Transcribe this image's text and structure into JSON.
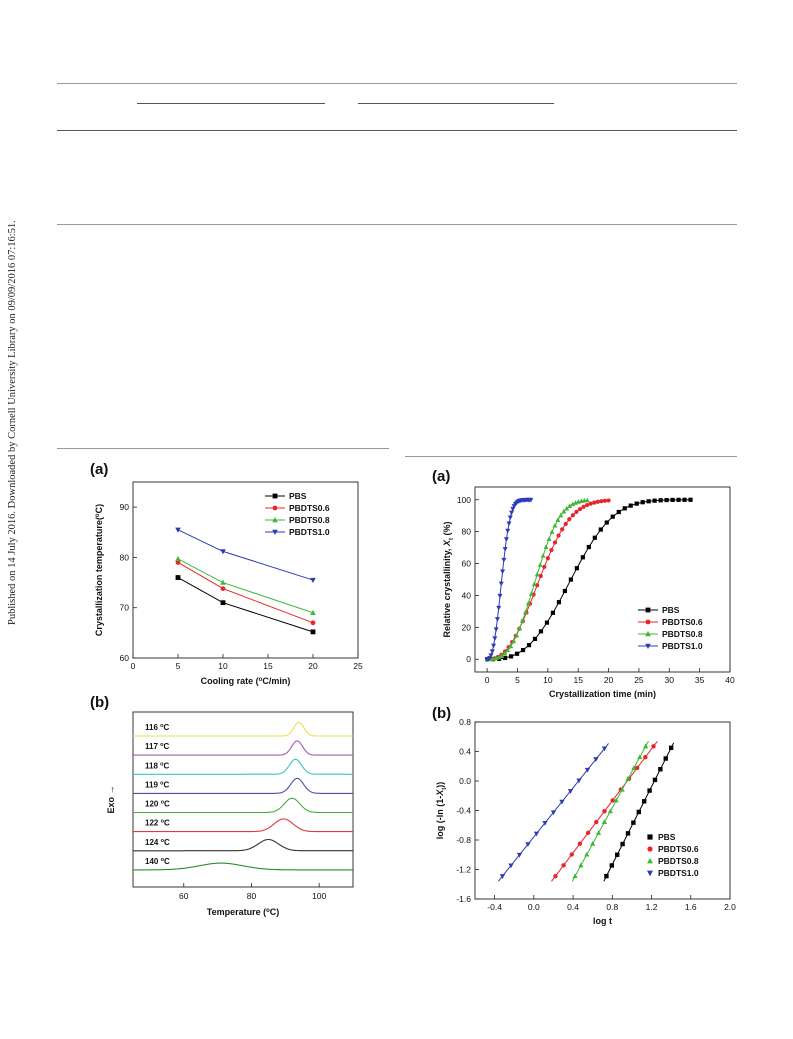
{
  "sidebar_text": "Published on 14 July 2016. Downloaded by Cornell University Library on 09/09/2016 07:16:51.",
  "colors": {
    "PBS": "#000000",
    "PBDTS0.6": "#e8252a",
    "PBDTS0.8": "#42b73a",
    "PBDTS1.0": "#2d3bb5"
  },
  "panel_labels": {
    "left_a": "(a)",
    "left_b": "(b)",
    "right_a": "(a)",
    "right_b": "(b)"
  },
  "chart_data": [
    {
      "id": "left_a",
      "type": "line",
      "xlabel": "Cooling rate (°C/min)",
      "ylabel": "Crystallization temperature(°C)",
      "xlim": [
        0,
        25
      ],
      "ylim": [
        60,
        95
      ],
      "xticks": [
        0,
        5,
        10,
        15,
        20,
        25
      ],
      "yticks": [
        60,
        70,
        80,
        90
      ],
      "x": [
        5,
        10,
        20
      ],
      "series": [
        {
          "name": "PBS",
          "marker": "square",
          "values": [
            76,
            71,
            65.2
          ]
        },
        {
          "name": "PBDTS0.6",
          "marker": "circle",
          "values": [
            79,
            73.8,
            67
          ]
        },
        {
          "name": "PBDTS0.8",
          "marker": "triangle-up",
          "values": [
            79.7,
            75,
            69
          ]
        },
        {
          "name": "PBDTS1.0",
          "marker": "triangle-down",
          "values": [
            85.5,
            81.2,
            75.5
          ]
        }
      ],
      "legend_position": "top-right"
    },
    {
      "id": "left_b",
      "type": "line",
      "xlabel": "Temperature (°C)",
      "ylabel": "Exo →",
      "xlim": [
        45,
        110
      ],
      "xticks": [
        60,
        80,
        100
      ],
      "curves": [
        {
          "label": "116 °C",
          "color": "#ece04f",
          "peak": 94,
          "width": 1.5,
          "height": 0.9
        },
        {
          "label": "117 °C",
          "color": "#a45ab0",
          "peak": 93.5,
          "width": 1.6,
          "height": 0.95
        },
        {
          "label": "118 °C",
          "color": "#3ec3c4",
          "peak": 93,
          "width": 1.8,
          "height": 1.0
        },
        {
          "label": "119 °C",
          "color": "#4b4fa9",
          "peak": 93.5,
          "width": 1.9,
          "height": 1.0
        },
        {
          "label": "120 °C",
          "color": "#45b03a",
          "peak": 92,
          "width": 2.3,
          "height": 0.95
        },
        {
          "label": "122 °C",
          "color": "#e23a3a",
          "peak": 89.5,
          "width": 2.8,
          "height": 0.85
        },
        {
          "label": "124 °C",
          "color": "#333333",
          "peak": 85,
          "width": 3.0,
          "height": 0.75
        },
        {
          "label": "140 °C",
          "color": "#2f8a2f",
          "peak": 71,
          "width": 6.5,
          "height": 0.45
        }
      ]
    },
    {
      "id": "right_a",
      "type": "line",
      "xlabel": "Crystallization time (min)",
      "ylabel": "Relative crystallinity, Xt (%)",
      "xlim": [
        -2,
        40
      ],
      "ylim": [
        -8,
        108
      ],
      "xticks": [
        0,
        5,
        10,
        15,
        20,
        25,
        30,
        35,
        40
      ],
      "yticks": [
        0,
        20,
        40,
        60,
        80,
        100
      ],
      "series": [
        {
          "name": "PBS",
          "marker": "square",
          "t_half": 13.8,
          "n": 2.9,
          "t_end": 33.5
        },
        {
          "name": "PBDTS0.6",
          "marker": "circle",
          "t_half": 8.6,
          "n": 2.45,
          "t_end": 20
        },
        {
          "name": "PBDTS0.8",
          "marker": "triangle-up",
          "t_half": 8.0,
          "n": 2.9,
          "t_end": 16.5
        },
        {
          "name": "PBDTS1.0",
          "marker": "triangle-down",
          "t_half": 2.4,
          "n": 2.5,
          "t_end": 7.2
        }
      ],
      "legend_position": "bottom-right"
    },
    {
      "id": "right_b",
      "type": "scatter",
      "xlabel": "log t",
      "ylabel": "log (-ln (1-Xt))",
      "xlim": [
        -0.6,
        2.0
      ],
      "ylim": [
        -1.6,
        0.8
      ],
      "xticks": [
        -0.4,
        0.0,
        0.4,
        0.8,
        1.2,
        1.6,
        2.0
      ],
      "yticks": [
        -1.6,
        -1.2,
        -0.8,
        -0.4,
        0.0,
        0.4,
        0.8
      ],
      "series": [
        {
          "name": "PBS",
          "marker": "square",
          "x0": 0.74,
          "x1": 1.4,
          "y0": -1.29,
          "y1": 0.45
        },
        {
          "name": "PBDTS0.6",
          "marker": "circle",
          "x0": 0.22,
          "x1": 1.22,
          "y0": -1.29,
          "y1": 0.47
        },
        {
          "name": "PBDTS0.8",
          "marker": "triangle-up",
          "x0": 0.42,
          "x1": 1.14,
          "y0": -1.29,
          "y1": 0.47
        },
        {
          "name": "PBDTS1.0",
          "marker": "triangle-down",
          "x0": -0.32,
          "x1": 0.72,
          "y0": -1.29,
          "y1": 0.44
        }
      ],
      "legend_position": "bottom-right"
    }
  ]
}
